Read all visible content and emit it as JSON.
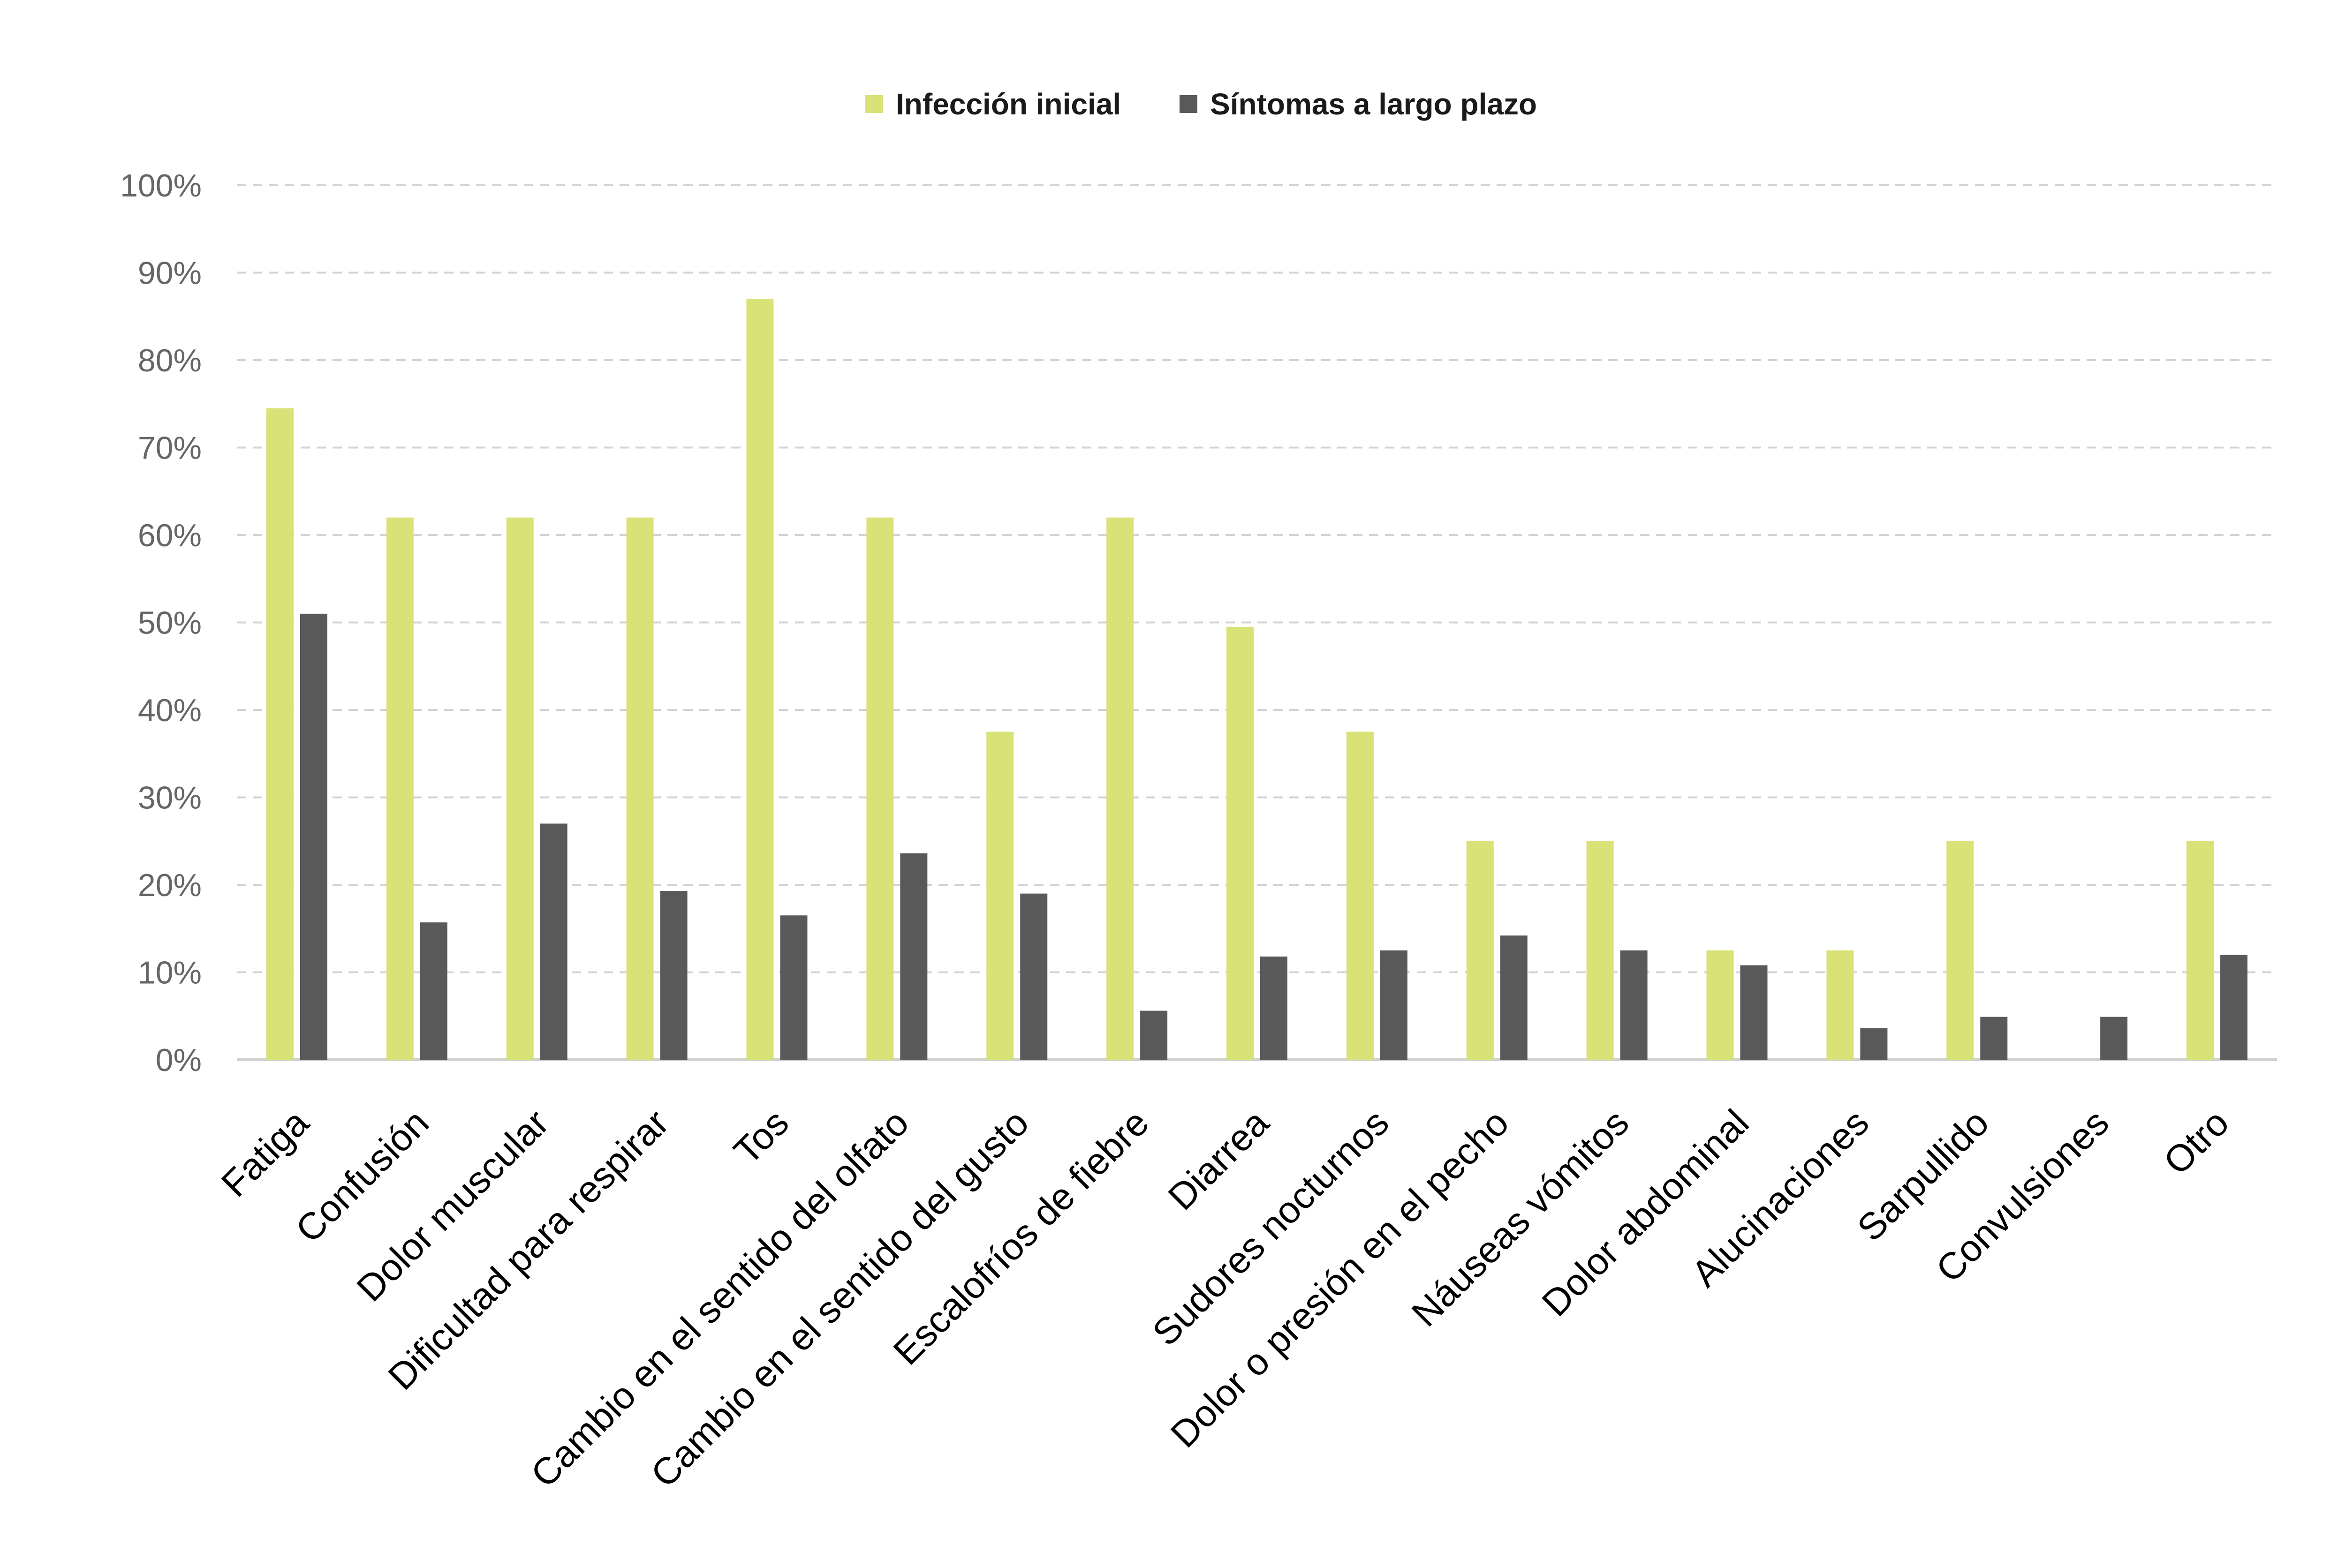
{
  "chart_data": {
    "type": "bar",
    "title": "",
    "xlabel": "",
    "ylabel": "",
    "ylim": [
      0,
      100
    ],
    "y_ticks": [
      "0%",
      "10%",
      "20%",
      "30%",
      "40%",
      "50%",
      "60%",
      "70%",
      "80%",
      "90%",
      "100%"
    ],
    "y_tick_values": [
      0,
      10,
      20,
      30,
      40,
      50,
      60,
      70,
      80,
      90,
      100
    ],
    "grid": "horizontal-dashed",
    "legend_position": "top-center",
    "categories": [
      "Fatiga",
      "Confusión",
      "Dolor muscular",
      "Dificultad para respirar",
      "Tos",
      "Cambio en el sentido del olfato",
      "Cambio en el sentido del gusto",
      "Escalofríos de fiebre",
      "Diarrea",
      "Sudores nocturnos",
      "Dolor o presión en el pecho",
      "Náuseas vómitos",
      "Dolor abdominal",
      "Alucinaciones",
      "Sarpullido",
      "Convulsiones",
      "Otro"
    ],
    "category_colors": [
      "#000000",
      "#000000",
      "#000000",
      "#000000",
      "#000000",
      "#595959",
      "#000000",
      "#000000",
      "#000000",
      "#000000",
      "#000000",
      "#000000",
      "#000000",
      "#000000",
      "#000000",
      "#000000",
      "#000000"
    ],
    "series": [
      {
        "name": "Infección inicial",
        "color": "#d9e276",
        "values": [
          74.5,
          62,
          62,
          62,
          87,
          62,
          37.5,
          62,
          49.5,
          37.5,
          25,
          25,
          12.5,
          12.5,
          25,
          0,
          25
        ]
      },
      {
        "name": "Síntomas a largo plazo",
        "color": "#595959",
        "values": [
          51,
          15.7,
          27,
          19.3,
          16.5,
          23.6,
          19,
          5.6,
          11.8,
          12.5,
          14.2,
          12.5,
          10.8,
          3.6,
          4.9,
          4.9,
          12
        ]
      }
    ]
  }
}
